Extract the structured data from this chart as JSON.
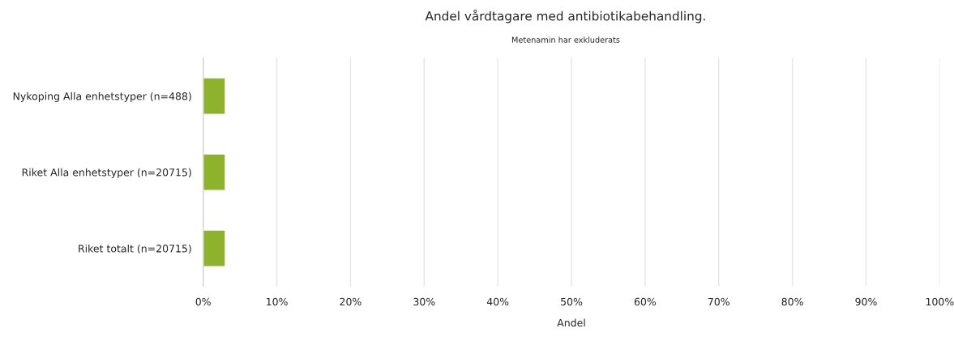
{
  "chart_data": {
    "type": "bar",
    "orientation": "horizontal",
    "title": "Andel vårdtagare med antibiotikabehandling.",
    "subtitle": "Metenamin har exkluderats",
    "xlabel": "Andel",
    "categories": [
      "Nykoping Alla enhetstyper (n=488)",
      "Riket Alla enhetstyper (n=20715)",
      "Riket totalt (n=20715)"
    ],
    "values": [
      3,
      3,
      3
    ],
    "color": "#8db32c",
    "xlim": [
      0,
      100
    ],
    "xticks": [
      {
        "value": 0,
        "label": "0%"
      },
      {
        "value": 10,
        "label": "10%"
      },
      {
        "value": 20,
        "label": "20%"
      },
      {
        "value": 30,
        "label": "30%"
      },
      {
        "value": 40,
        "label": "40%"
      },
      {
        "value": 50,
        "label": "50%"
      },
      {
        "value": 60,
        "label": "60%"
      },
      {
        "value": 70,
        "label": "70%"
      },
      {
        "value": 80,
        "label": "80%"
      },
      {
        "value": 90,
        "label": "90%"
      },
      {
        "value": 100,
        "label": "100%"
      }
    ],
    "grid": "x",
    "legend": false
  }
}
